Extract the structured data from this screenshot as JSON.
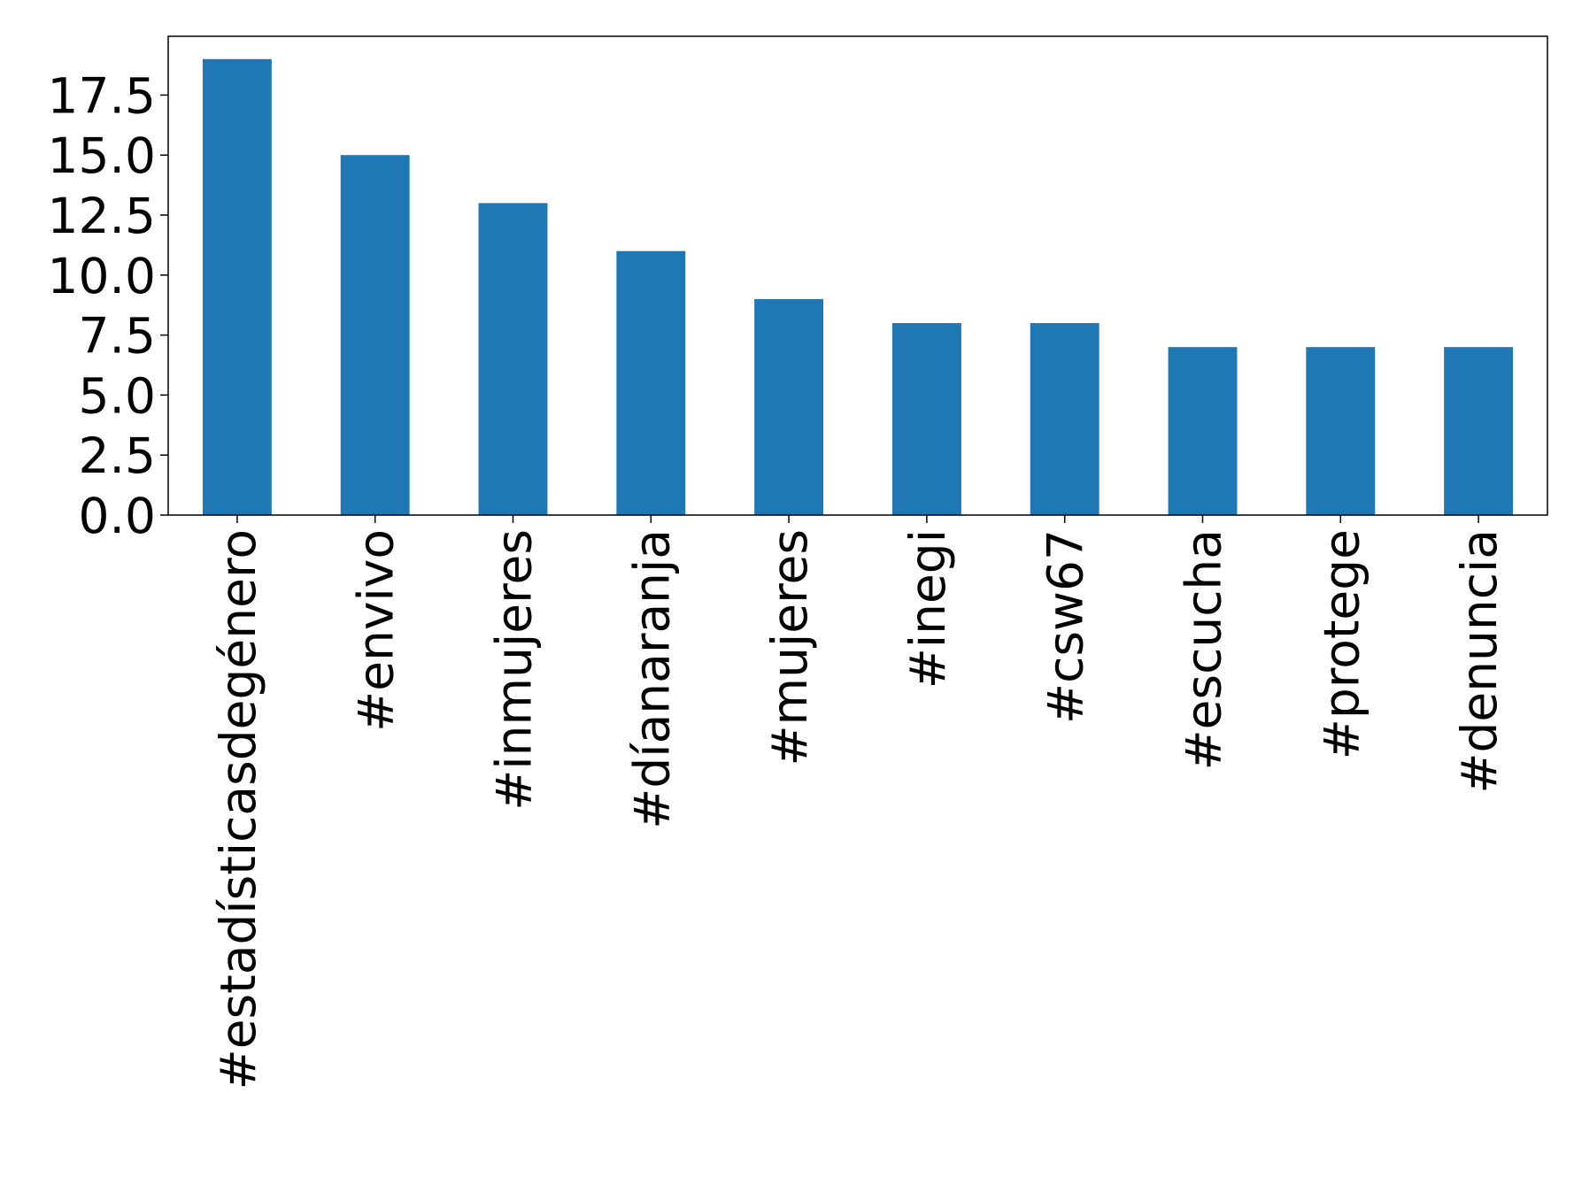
{
  "chart_data": {
    "type": "bar",
    "categories": [
      "#estadísticasdegénero",
      "#envivo",
      "#inmujeres",
      "#díanaranja",
      "#mujeres",
      "#inegi",
      "#csw67",
      "#escucha",
      "#protege",
      "#denuncia"
    ],
    "values": [
      19,
      15,
      13,
      11,
      9,
      8,
      8,
      7,
      7,
      7
    ],
    "color": "#1f77b4",
    "ylim": [
      0,
      19.95
    ],
    "yticks": [
      {
        "value": 0,
        "label": "0.0"
      },
      {
        "value": 2.5,
        "label": "2.5"
      },
      {
        "value": 5,
        "label": "5.0"
      },
      {
        "value": 7.5,
        "label": "7.5"
      },
      {
        "value": 10,
        "label": "10.0"
      },
      {
        "value": 12.5,
        "label": "12.5"
      },
      {
        "value": 15,
        "label": "15.0"
      },
      {
        "value": 17.5,
        "label": "17.5"
      }
    ],
    "grid": false
  }
}
